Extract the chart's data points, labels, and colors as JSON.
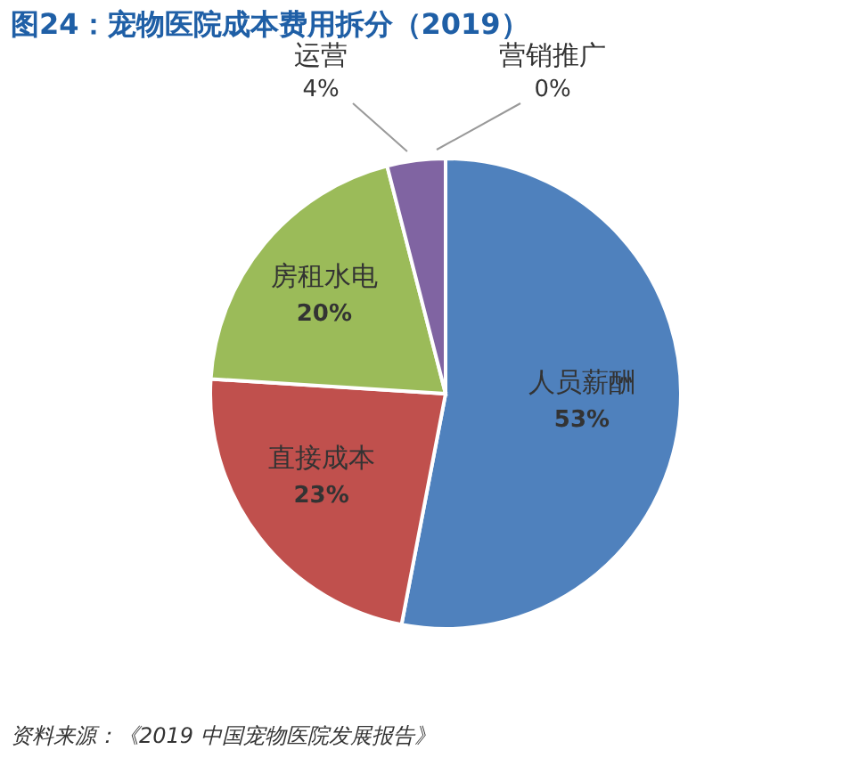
{
  "chart_data": {
    "type": "pie",
    "title": "图24：宠物医院成本费用拆分（2019）",
    "categories": [
      "人员薪酬",
      "直接成本",
      "房租水电",
      "运营",
      "营销推广"
    ],
    "values": [
      53,
      23,
      20,
      4,
      0
    ],
    "colors": [
      "#4f81bd",
      "#c0504d",
      "#9bbb59",
      "#8064a2",
      "#4bacc6"
    ],
    "value_labels": [
      "53%",
      "23%",
      "20%",
      "4%",
      "0%"
    ],
    "annotations": [
      "资料来源：《2019 中国宠物医院发展报告》"
    ]
  }
}
